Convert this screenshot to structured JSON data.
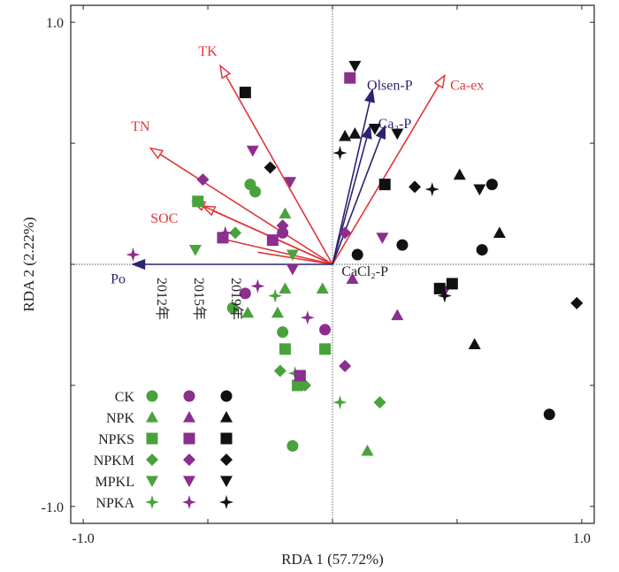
{
  "chart_data": {
    "type": "scatter",
    "title": "",
    "xlabel": "RDA 1 (57.72%)",
    "ylabel": "RDA 2 (2.22%)",
    "xlim": [
      -1.05,
      1.05
    ],
    "ylim": [
      -1.07,
      1.07
    ],
    "xticks": [
      {
        "value": -1.0,
        "label": "-1.0"
      },
      {
        "value": 1.0,
        "label": "1.0"
      }
    ],
    "yticks": [
      {
        "value": 1.0,
        "label": "1.0"
      },
      {
        "value": -1.0,
        "label": "-1.0"
      }
    ],
    "grid": false,
    "legend": {
      "placement": "bottom-left",
      "years": [
        "2012年",
        "2015年",
        "2019年"
      ],
      "treatments": [
        "CK",
        "NPK",
        "NPKS",
        "NPKM",
        "MPKL",
        "NPKA"
      ]
    },
    "year_colors": {
      "2012年": "#4aa23c",
      "2015年": "#8b2e8e",
      "2019年": "#111111"
    },
    "treatment_markers": {
      "CK": "circle",
      "NPK": "triangle",
      "NPKS": "square",
      "NPKM": "diamond",
      "MPKL": "triangle-down",
      "NPKA": "star"
    },
    "arrows": [
      {
        "label": "TK",
        "x": -0.45,
        "y": 0.82,
        "color": "#e0353a",
        "head": "open",
        "lx": -0.5,
        "ly": 0.88,
        "anchor": "middle"
      },
      {
        "label": "TN",
        "x": -0.73,
        "y": 0.48,
        "color": "#e0353a",
        "head": "open",
        "lx": -0.77,
        "ly": 0.57,
        "anchor": "middle"
      },
      {
        "label": "SOC",
        "x": -0.52,
        "y": 0.24,
        "color": "#e0353a",
        "head": "open",
        "lx": -0.73,
        "ly": 0.19,
        "anchor": "start"
      },
      {
        "label": "",
        "x": -0.56,
        "y": 0.26,
        "color": "#e0353a",
        "head": "open",
        "lx": 0,
        "ly": 0,
        "anchor": "start"
      },
      {
        "label": "",
        "x": -0.42,
        "y": 0.1,
        "color": "#e0353a",
        "head": "none",
        "lx": 0,
        "ly": 0,
        "anchor": "start"
      },
      {
        "label": "",
        "x": -0.3,
        "y": 0.05,
        "color": "#e0353a",
        "head": "none",
        "lx": 0,
        "ly": 0,
        "anchor": "start"
      },
      {
        "label": "Ca-ex",
        "x": 0.45,
        "y": 0.78,
        "color": "#e0353a",
        "head": "open",
        "lx": 0.54,
        "ly": 0.74,
        "anchor": "middle"
      },
      {
        "label": "Olsen-P",
        "x": 0.16,
        "y": 0.72,
        "color": "#2b2470",
        "head": "filled",
        "lx": 0.23,
        "ly": 0.74,
        "anchor": "middle"
      },
      {
        "label": "",
        "x": 0.15,
        "y": 0.57,
        "color": "#2b2470",
        "head": "filled",
        "lx": 0,
        "ly": 0,
        "anchor": "start"
      },
      {
        "label": "Ca₂-P",
        "x": 0.21,
        "y": 0.57,
        "color": "#2b2470",
        "head": "filled",
        "lx": 0.25,
        "ly": 0.58,
        "anchor": "middle"
      },
      {
        "label": "CaCl₂-P",
        "x": 0.0,
        "y": 0.0,
        "color": "#222222",
        "head": "none",
        "lx": 0.13,
        "ly": -0.03,
        "anchor": "middle"
      },
      {
        "label": "Po",
        "x": -0.8,
        "y": 0.0,
        "color": "#2b2470",
        "head": "filled",
        "lx": -0.86,
        "ly": -0.06,
        "anchor": "middle"
      }
    ],
    "series": [
      {
        "name": "2012年",
        "treatment": "CK",
        "points": [
          [
            -0.33,
            0.33
          ],
          [
            -0.31,
            0.3
          ],
          [
            -0.4,
            -0.18
          ],
          [
            -0.2,
            -0.28
          ],
          [
            -0.16,
            -0.75
          ]
        ]
      },
      {
        "name": "2012年",
        "treatment": "NPK",
        "points": [
          [
            -0.34,
            -0.2
          ],
          [
            -0.19,
            -0.1
          ],
          [
            -0.22,
            -0.2
          ],
          [
            -0.04,
            -0.1
          ],
          [
            0.14,
            -0.77
          ],
          [
            -0.19,
            0.21
          ]
        ]
      },
      {
        "name": "2012年",
        "treatment": "NPKS",
        "points": [
          [
            -0.54,
            0.26
          ],
          [
            -0.19,
            -0.35
          ],
          [
            -0.03,
            -0.35
          ],
          [
            -0.14,
            -0.5
          ]
        ]
      },
      {
        "name": "2012年",
        "treatment": "NPKM",
        "points": [
          [
            -0.39,
            0.13
          ],
          [
            -0.21,
            -0.44
          ],
          [
            -0.11,
            -0.5
          ],
          [
            0.19,
            -0.57
          ]
        ]
      },
      {
        "name": "2012年",
        "treatment": "MPKL",
        "points": [
          [
            -0.55,
            0.06
          ],
          [
            -0.16,
            0.04
          ]
        ]
      },
      {
        "name": "2012年",
        "treatment": "NPKA",
        "points": [
          [
            -0.23,
            -0.13
          ],
          [
            -0.15,
            -0.45
          ],
          [
            0.03,
            -0.57
          ]
        ]
      },
      {
        "name": "2015年",
        "treatment": "CK",
        "points": [
          [
            -0.2,
            0.13
          ],
          [
            -0.35,
            -0.12
          ],
          [
            -0.03,
            -0.27
          ]
        ]
      },
      {
        "name": "2015年",
        "treatment": "NPK",
        "points": [
          [
            0.08,
            -0.06
          ],
          [
            0.26,
            -0.21
          ]
        ]
      },
      {
        "name": "2015年",
        "treatment": "NPKS",
        "points": [
          [
            0.07,
            0.77
          ],
          [
            -0.44,
            0.11
          ],
          [
            -0.24,
            0.1
          ],
          [
            -0.13,
            -0.46
          ]
        ]
      },
      {
        "name": "2015年",
        "treatment": "NPKM",
        "points": [
          [
            -0.52,
            0.35
          ],
          [
            -0.2,
            0.16
          ],
          [
            0.05,
            0.13
          ],
          [
            0.05,
            -0.42
          ]
        ]
      },
      {
        "name": "2015年",
        "treatment": "MPKL",
        "points": [
          [
            -0.32,
            0.47
          ],
          [
            -0.17,
            0.34
          ],
          [
            0.2,
            0.11
          ],
          [
            -0.16,
            -0.02
          ],
          [
            0.45,
            -0.11
          ]
        ]
      },
      {
        "name": "2015年",
        "treatment": "NPKA",
        "points": [
          [
            -0.8,
            0.04
          ],
          [
            -0.43,
            0.13
          ],
          [
            -0.3,
            -0.09
          ],
          [
            -0.1,
            -0.22
          ]
        ]
      },
      {
        "name": "2019年",
        "treatment": "CK",
        "points": [
          [
            0.1,
            0.04
          ],
          [
            0.28,
            0.08
          ],
          [
            0.64,
            0.33
          ],
          [
            0.6,
            0.06
          ],
          [
            0.87,
            -0.62
          ]
        ]
      },
      {
        "name": "2019年",
        "treatment": "NPK",
        "points": [
          [
            0.09,
            0.54
          ],
          [
            0.05,
            0.53
          ],
          [
            0.51,
            0.37
          ],
          [
            0.67,
            0.13
          ],
          [
            0.57,
            -0.33
          ]
        ]
      },
      {
        "name": "2019年",
        "treatment": "NPKS",
        "points": [
          [
            -0.35,
            0.71
          ],
          [
            0.21,
            0.33
          ],
          [
            0.43,
            -0.1
          ],
          [
            0.48,
            -0.08
          ]
        ]
      },
      {
        "name": "2019年",
        "treatment": "NPKM",
        "points": [
          [
            -0.25,
            0.4
          ],
          [
            0.33,
            0.32
          ],
          [
            0.98,
            -0.16
          ]
        ]
      },
      {
        "name": "2019年",
        "treatment": "MPKL",
        "points": [
          [
            0.09,
            0.82
          ],
          [
            0.17,
            0.56
          ],
          [
            0.26,
            0.54
          ],
          [
            0.59,
            0.31
          ]
        ]
      },
      {
        "name": "2019年",
        "treatment": "NPKA",
        "points": [
          [
            0.03,
            0.46
          ],
          [
            0.4,
            0.31
          ],
          [
            0.45,
            -0.13
          ]
        ]
      }
    ]
  }
}
